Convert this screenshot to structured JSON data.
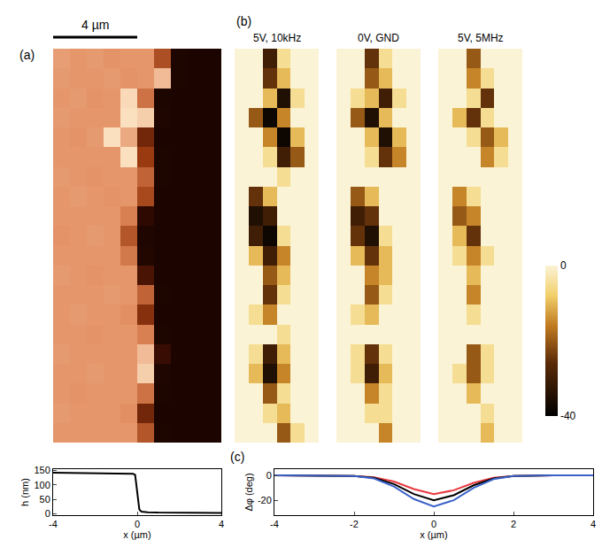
{
  "chart_data": [
    {
      "type": "heatmap",
      "panel": "(a)",
      "scale_bar": {
        "label": "4 µm",
        "length": 4
      },
      "xlim": [
        0,
        8
      ],
      "ylim": [
        0,
        19
      ],
      "zlim": [
        0,
        160
      ],
      "tick_labels": false,
      "z": [
        [
          140,
          140,
          140,
          140,
          140,
          100,
          3,
          2,
          2,
          2
        ],
        [
          141,
          140,
          140,
          140,
          138,
          60,
          2,
          2,
          2,
          2
        ],
        [
          140,
          139,
          140,
          140,
          140,
          120,
          3,
          2,
          2,
          2
        ],
        [
          140,
          140,
          141,
          140,
          140,
          155,
          6,
          2,
          2,
          2
        ],
        [
          141,
          140,
          140,
          140,
          140,
          150,
          30,
          2,
          2,
          2
        ],
        [
          140,
          140,
          139,
          140,
          140,
          130,
          4,
          2,
          2,
          2
        ],
        [
          140,
          141,
          140,
          140,
          138,
          70,
          2,
          2,
          2,
          2
        ],
        [
          140,
          140,
          140,
          141,
          140,
          110,
          3,
          2,
          2,
          2
        ],
        [
          141,
          140,
          139,
          140,
          140,
          40,
          2,
          2,
          2,
          2
        ],
        [
          140,
          140,
          140,
          140,
          125,
          8,
          2,
          2,
          2,
          2
        ],
        [
          139,
          140,
          141,
          140,
          100,
          5,
          2,
          2,
          2,
          2
        ],
        [
          140,
          140,
          140,
          140,
          130,
          20,
          2,
          2,
          2,
          2
        ],
        [
          140,
          141,
          140,
          139,
          140,
          90,
          2,
          2,
          2,
          2
        ],
        [
          141,
          140,
          139,
          140,
          140,
          110,
          3,
          2,
          2,
          2
        ],
        [
          140,
          140,
          140,
          140,
          160,
          80,
          3,
          2,
          2,
          2
        ],
        [
          140,
          139,
          141,
          160,
          145,
          60,
          2,
          2,
          2,
          2
        ],
        [
          141,
          140,
          140,
          140,
          160,
          155,
          5,
          2,
          2,
          2
        ],
        [
          140,
          141,
          139,
          140,
          158,
          120,
          3,
          2,
          2,
          2
        ],
        [
          141,
          140,
          140,
          141,
          139,
          140,
          150,
          4,
          2,
          2
        ],
        [
          142,
          140,
          141,
          139,
          140,
          140,
          95,
          3,
          2,
          2
        ]
      ]
    },
    {
      "type": "heatmap",
      "panel": "(b)",
      "title": "5V, 10kHz",
      "xlim": [
        0,
        6
      ],
      "ylim": [
        0,
        19
      ],
      "zlim": [
        -40,
        0
      ],
      "tick_labels": false,
      "colorbar": {
        "ticks": [
          0,
          -40
        ]
      },
      "z": [
        [
          0,
          0,
          0,
          -20,
          -5,
          0
        ],
        [
          0,
          0,
          -5,
          -10,
          0,
          0
        ],
        [
          0,
          0,
          -20,
          -5,
          0,
          0
        ],
        [
          0,
          -10,
          -35,
          -15,
          0,
          0
        ],
        [
          0,
          -5,
          -30,
          -10,
          0,
          0
        ],
        [
          0,
          0,
          0,
          -5,
          0,
          0
        ],
        [
          0,
          -5,
          -15,
          0,
          0,
          0
        ],
        [
          0,
          0,
          -25,
          -5,
          0,
          0
        ],
        [
          0,
          0,
          -20,
          -10,
          0,
          0
        ],
        [
          0,
          -10,
          -30,
          -15,
          0,
          0
        ],
        [
          0,
          -30,
          -38,
          -5,
          0,
          0
        ],
        [
          0,
          -35,
          -30,
          0,
          0,
          0
        ],
        [
          0,
          -25,
          -10,
          0,
          0,
          0
        ],
        [
          0,
          0,
          0,
          -5,
          0,
          0
        ],
        [
          0,
          0,
          -5,
          -30,
          -20,
          0
        ],
        [
          0,
          0,
          -15,
          -38,
          -10,
          0
        ],
        [
          0,
          -20,
          -38,
          -15,
          0,
          0
        ],
        [
          0,
          0,
          -10,
          -35,
          -5,
          0
        ],
        [
          0,
          0,
          -25,
          -10,
          0,
          0
        ],
        [
          0,
          0,
          -30,
          -5,
          0,
          0
        ]
      ]
    },
    {
      "type": "heatmap",
      "title": "0V, GND",
      "xlim": [
        0,
        6
      ],
      "ylim": [
        0,
        19
      ],
      "zlim": [
        -40,
        0
      ],
      "tick_labels": false,
      "z": [
        [
          0,
          0,
          0,
          -15,
          0,
          0
        ],
        [
          0,
          0,
          -5,
          -5,
          0,
          0
        ],
        [
          0,
          0,
          -15,
          -5,
          0,
          0
        ],
        [
          0,
          -5,
          -30,
          -10,
          0,
          0
        ],
        [
          0,
          -5,
          -25,
          -5,
          0,
          0
        ],
        [
          0,
          0,
          0,
          0,
          0,
          0
        ],
        [
          0,
          -5,
          -10,
          0,
          0,
          0
        ],
        [
          0,
          0,
          -20,
          -5,
          0,
          0
        ],
        [
          0,
          0,
          -15,
          -10,
          0,
          0
        ],
        [
          0,
          -10,
          -25,
          -10,
          0,
          0
        ],
        [
          0,
          -25,
          -35,
          -5,
          0,
          0
        ],
        [
          0,
          -30,
          -25,
          0,
          0,
          0
        ],
        [
          0,
          -20,
          -10,
          0,
          0,
          0
        ],
        [
          0,
          0,
          0,
          0,
          0,
          0
        ],
        [
          0,
          0,
          -5,
          -25,
          -15,
          0
        ],
        [
          0,
          0,
          -10,
          -35,
          -10,
          0
        ],
        [
          0,
          -20,
          -35,
          -10,
          0,
          0
        ],
        [
          0,
          -5,
          -10,
          -30,
          -5,
          0
        ],
        [
          0,
          0,
          -20,
          -10,
          0,
          0
        ],
        [
          0,
          0,
          -25,
          -5,
          0,
          0
        ]
      ]
    },
    {
      "type": "heatmap",
      "title": "5V, 5MHz",
      "xlim": [
        0,
        6
      ],
      "ylim": [
        0,
        19
      ],
      "zlim": [
        -40,
        0
      ],
      "tick_labels": false,
      "z": [
        [
          0,
          0,
          0,
          -10,
          0,
          0
        ],
        [
          0,
          0,
          0,
          -5,
          0,
          0
        ],
        [
          0,
          0,
          -10,
          0,
          0,
          0
        ],
        [
          0,
          -5,
          -20,
          -5,
          0,
          0
        ],
        [
          0,
          0,
          -20,
          -5,
          0,
          0
        ],
        [
          0,
          0,
          0,
          0,
          0,
          0
        ],
        [
          0,
          0,
          -5,
          0,
          0,
          0
        ],
        [
          0,
          0,
          -15,
          0,
          0,
          0
        ],
        [
          0,
          0,
          -10,
          0,
          0,
          0
        ],
        [
          0,
          -5,
          -15,
          -5,
          0,
          0
        ],
        [
          0,
          -10,
          -25,
          0,
          0,
          0
        ],
        [
          0,
          -20,
          -15,
          0,
          0,
          0
        ],
        [
          0,
          -15,
          -5,
          0,
          0,
          0
        ],
        [
          0,
          0,
          0,
          0,
          0,
          0
        ],
        [
          0,
          0,
          0,
          -15,
          -5,
          0
        ],
        [
          0,
          0,
          -5,
          -20,
          -10,
          0
        ],
        [
          0,
          -10,
          -25,
          -5,
          0,
          0
        ],
        [
          0,
          0,
          -5,
          -25,
          0,
          0
        ],
        [
          0,
          0,
          -15,
          -5,
          0,
          0
        ],
        [
          0,
          0,
          -20,
          0,
          0,
          0
        ]
      ]
    },
    {
      "type": "line",
      "xlabel": "x (µm)",
      "ylabel": "h (nm)",
      "x": [
        -4,
        -3,
        -2,
        -1,
        -0.5,
        -0.2,
        -0.1,
        0,
        0.1,
        0.2,
        0.5,
        1,
        2,
        3,
        4
      ],
      "series": [
        {
          "color": "#000000",
          "values": [
            143,
            142,
            141,
            140,
            140,
            139,
            135,
            80,
            15,
            7,
            5,
            4,
            4,
            3,
            3
          ]
        }
      ],
      "xlim": [
        -4,
        4
      ],
      "xticks": [
        -4,
        0,
        4
      ],
      "ylim": [
        -5,
        155
      ],
      "yticks": [
        0,
        50,
        100,
        150
      ]
    },
    {
      "type": "line",
      "panel": "(c)",
      "xlabel": "x (µm)",
      "ylabel": "Δφ (deg)",
      "x": [
        -4,
        -3,
        -2,
        -1.5,
        -1,
        -0.5,
        0,
        0.5,
        1,
        1.5,
        2,
        3,
        4
      ],
      "series": [
        {
          "color": "#e8383d",
          "values": [
            0,
            0,
            -0.5,
            -1.5,
            -5,
            -11,
            -15,
            -12,
            -6,
            -2,
            -0.5,
            0,
            0
          ]
        },
        {
          "color": "#000000",
          "values": [
            0,
            0,
            -0.5,
            -2,
            -7,
            -15,
            -20,
            -16,
            -8,
            -2.5,
            -0.5,
            0,
            0
          ]
        },
        {
          "color": "#3a62c8",
          "values": [
            0,
            0,
            -0.5,
            -2.5,
            -9,
            -19,
            -25,
            -20,
            -10,
            -3,
            -0.5,
            0,
            0
          ]
        }
      ],
      "xlim": [
        -4,
        4
      ],
      "xticks": [
        -4,
        -2,
        0,
        2,
        4
      ],
      "ylim": [
        -32,
        5
      ],
      "yticks": [
        -20,
        0
      ]
    }
  ]
}
